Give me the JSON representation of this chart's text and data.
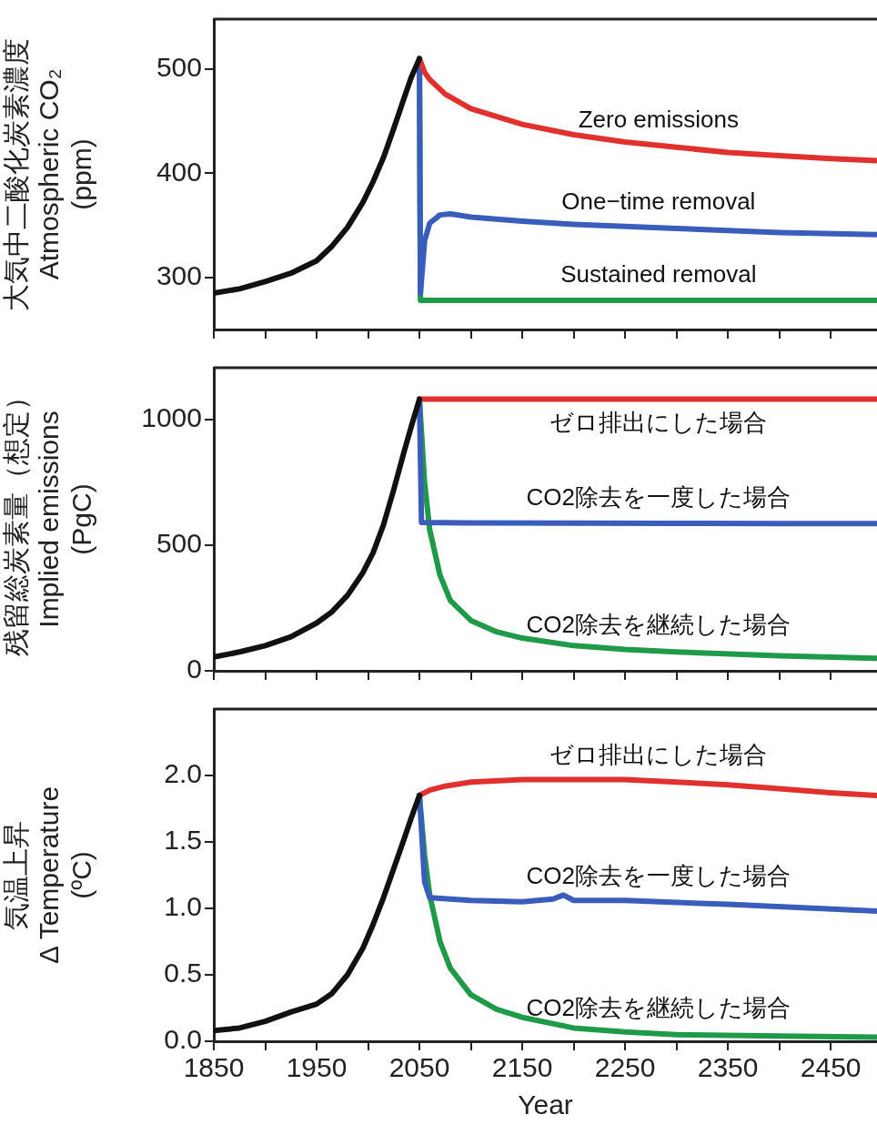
{
  "chart_data": [
    {
      "type": "line",
      "ylabel": "大気中二酸化炭素濃度\nAtmospheric CO₂\n(ppm)",
      "xlim": [
        1850,
        2495
      ],
      "ylim": [
        250,
        548
      ],
      "xticks": [
        {
          "value": 1850,
          "label": null
        },
        {
          "value": 1900,
          "label": null
        },
        {
          "value": 1950,
          "label": null
        },
        {
          "value": 2000,
          "label": null
        },
        {
          "value": 2050,
          "label": null
        },
        {
          "value": 2100,
          "label": null
        },
        {
          "value": 2150,
          "label": null
        },
        {
          "value": 2200,
          "label": null
        },
        {
          "value": 2250,
          "label": null
        },
        {
          "value": 2300,
          "label": null
        },
        {
          "value": 2350,
          "label": null
        },
        {
          "value": 2400,
          "label": null
        },
        {
          "value": 2450,
          "label": null
        }
      ],
      "yticks": [
        300,
        400,
        500
      ],
      "tick_labels": "y",
      "grid": false,
      "legend": false,
      "marker": "none",
      "line_style": "solid",
      "series": [
        {
          "color": "#111111",
          "x": [
            1850,
            1875,
            1900,
            1925,
            1950,
            1965,
            1980,
            1995,
            2005,
            2015,
            2025,
            2035,
            2042,
            2050
          ],
          "values": [
            285,
            289,
            296,
            304,
            316,
            330,
            348,
            372,
            392,
            415,
            443,
            472,
            492,
            510
          ]
        },
        {
          "name": "Zero emissions",
          "color": "#e0312f",
          "x": [
            2050,
            2055,
            2060,
            2075,
            2100,
            2150,
            2200,
            2250,
            2300,
            2350,
            2400,
            2450,
            2495
          ],
          "values": [
            510,
            497,
            490,
            476,
            462,
            447,
            437,
            430,
            425,
            420,
            417,
            414,
            412
          ]
        },
        {
          "name": "One−time removal",
          "color": "#3a5dbb",
          "x": [
            2050,
            2051,
            2055,
            2060,
            2070,
            2080,
            2100,
            2150,
            2200,
            2300,
            2400,
            2495
          ],
          "values": [
            510,
            285,
            335,
            352,
            360,
            361,
            358,
            354,
            351,
            347,
            343,
            341
          ]
        },
        {
          "name": "Sustained removal",
          "color": "#1e9a48",
          "x": [
            2050,
            2051,
            2100,
            2200,
            2300,
            2400,
            2495
          ],
          "values": [
            510,
            278,
            278,
            278,
            278,
            278,
            278
          ]
        }
      ]
    },
    {
      "type": "line",
      "ylabel": "残留総炭素量（想定）\nImplied emissions\n(PgC)",
      "xlim": [
        1850,
        2495
      ],
      "ylim": [
        0,
        1205
      ],
      "xticks": [
        {
          "value": 1850,
          "label": null
        },
        {
          "value": 1900,
          "label": null
        },
        {
          "value": 1950,
          "label": null
        },
        {
          "value": 2000,
          "label": null
        },
        {
          "value": 2050,
          "label": null
        },
        {
          "value": 2100,
          "label": null
        },
        {
          "value": 2150,
          "label": null
        },
        {
          "value": 2200,
          "label": null
        },
        {
          "value": 2250,
          "label": null
        },
        {
          "value": 2300,
          "label": null
        },
        {
          "value": 2350,
          "label": null
        },
        {
          "value": 2400,
          "label": null
        },
        {
          "value": 2450,
          "label": null
        }
      ],
      "yticks": [
        0,
        500,
        1000
      ],
      "tick_labels": "y",
      "grid": false,
      "legend": false,
      "marker": "none",
      "line_style": "solid",
      "series": [
        {
          "color": "#111111",
          "x": [
            1850,
            1875,
            1900,
            1925,
            1950,
            1965,
            1980,
            1995,
            2005,
            2015,
            2025,
            2035,
            2042,
            2050
          ],
          "values": [
            55,
            75,
            100,
            135,
            190,
            235,
            300,
            390,
            470,
            580,
            720,
            870,
            970,
            1080
          ]
        },
        {
          "name": "ゼロ排出にした場合",
          "color": "#e0312f",
          "x": [
            2050,
            2100,
            2200,
            2300,
            2400,
            2495
          ],
          "values": [
            1080,
            1080,
            1080,
            1080,
            1080,
            1080
          ]
        },
        {
          "name": "CO2除去を一度した場合",
          "color": "#3a5dbb",
          "x": [
            2050,
            2052,
            2100,
            2200,
            2300,
            2400,
            2495
          ],
          "values": [
            1080,
            590,
            588,
            587,
            586,
            585,
            585
          ]
        },
        {
          "name": "CO2除去を継続した場合",
          "color": "#1e9a48",
          "x": [
            2050,
            2055,
            2060,
            2070,
            2080,
            2100,
            2125,
            2150,
            2200,
            2250,
            2300,
            2400,
            2495
          ],
          "values": [
            1080,
            750,
            560,
            380,
            280,
            200,
            155,
            130,
            100,
            85,
            75,
            60,
            50
          ]
        }
      ]
    },
    {
      "type": "line",
      "xlabel": "Year",
      "ylabel": "気温上昇\nΔ Temperature\n(ºC)",
      "xlim": [
        1850,
        2495
      ],
      "ylim": [
        0,
        2.5
      ],
      "xticks": [
        1850,
        {
          "value": 1900,
          "label": null
        },
        1950,
        {
          "value": 2000,
          "label": null
        },
        2050,
        {
          "value": 2100,
          "label": null
        },
        2150,
        {
          "value": 2200,
          "label": null
        },
        2250,
        {
          "value": 2300,
          "label": null
        },
        2350,
        {
          "value": 2400,
          "label": null
        },
        2450
      ],
      "yticks": [
        {
          "value": 0,
          "label": "0.0"
        },
        {
          "value": 0.5,
          "label": "0.5"
        },
        {
          "value": 1,
          "label": "1.0"
        },
        {
          "value": 1.5,
          "label": "1.5"
        },
        {
          "value": 2,
          "label": "2.0"
        }
      ],
      "grid": false,
      "legend": false,
      "marker": "none",
      "line_style": "solid",
      "series": [
        {
          "color": "#111111",
          "x": [
            1850,
            1875,
            1900,
            1925,
            1950,
            1965,
            1980,
            1995,
            2005,
            2015,
            2025,
            2035,
            2042,
            2050
          ],
          "values": [
            0.08,
            0.1,
            0.15,
            0.22,
            0.28,
            0.36,
            0.5,
            0.7,
            0.88,
            1.08,
            1.3,
            1.52,
            1.68,
            1.85
          ]
        },
        {
          "name": "ゼロ排出にした場合",
          "color": "#e0312f",
          "x": [
            2050,
            2060,
            2075,
            2100,
            2150,
            2200,
            2250,
            2300,
            2350,
            2400,
            2450,
            2495
          ],
          "values": [
            1.85,
            1.89,
            1.92,
            1.95,
            1.97,
            1.97,
            1.97,
            1.95,
            1.93,
            1.9,
            1.87,
            1.85
          ]
        },
        {
          "name": "CO2除去を一度した場合",
          "color": "#3a5dbb",
          "x": [
            2050,
            2055,
            2060,
            2100,
            2150,
            2180,
            2190,
            2200,
            2250,
            2350,
            2495
          ],
          "values": [
            1.85,
            1.2,
            1.08,
            1.06,
            1.05,
            1.07,
            1.1,
            1.06,
            1.06,
            1.03,
            0.98
          ]
        },
        {
          "name": "CO2除去を継続した場合",
          "color": "#1e9a48",
          "x": [
            2050,
            2055,
            2060,
            2070,
            2080,
            2100,
            2125,
            2150,
            2200,
            2250,
            2300,
            2400,
            2495
          ],
          "values": [
            1.85,
            1.4,
            1.1,
            0.75,
            0.55,
            0.35,
            0.24,
            0.18,
            0.1,
            0.07,
            0.05,
            0.04,
            0.03
          ]
        }
      ]
    }
  ]
}
